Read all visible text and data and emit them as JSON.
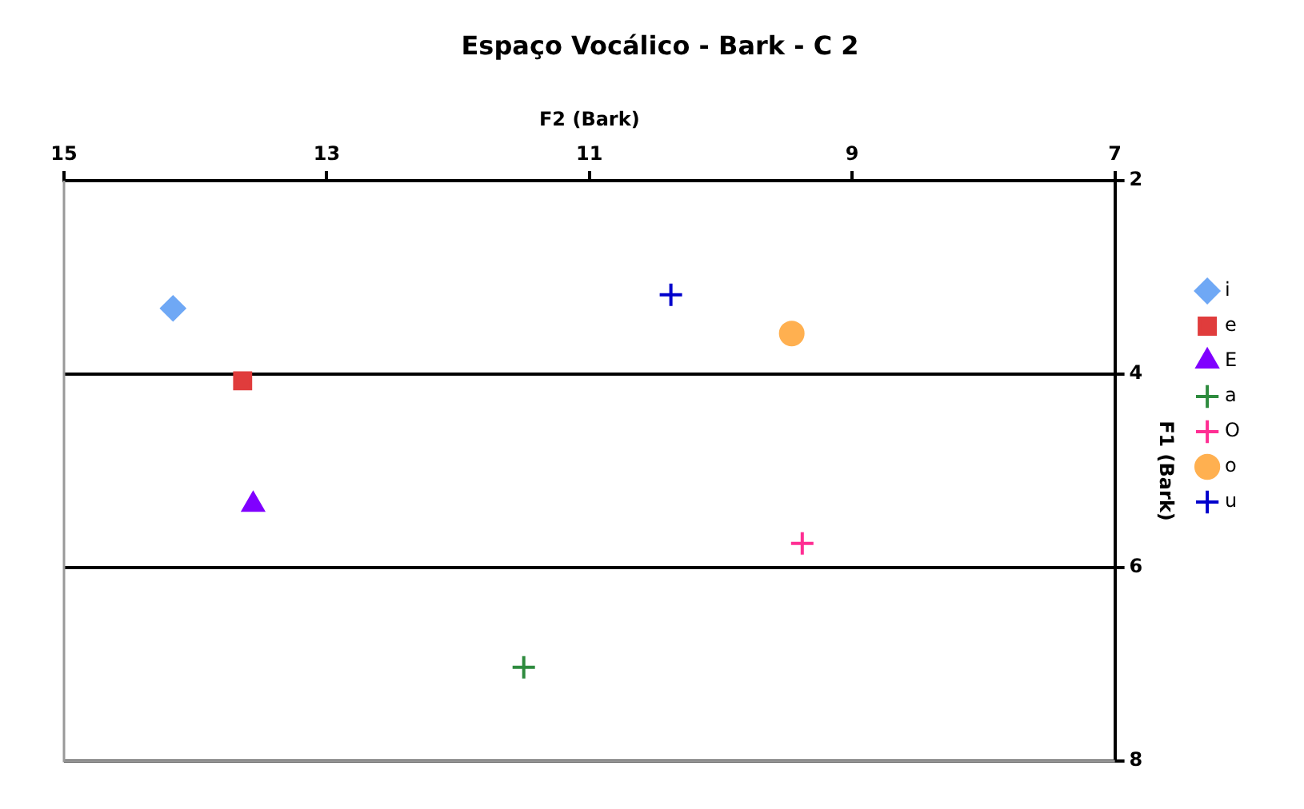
{
  "chart_data": {
    "type": "scatter",
    "title": "Espaço Vocálico - Bark - C 2",
    "xlabel": "F2 (Bark)",
    "ylabel": "F1 (Bark)",
    "xlim": [
      15,
      7
    ],
    "xticks": [
      15,
      13,
      11,
      9,
      7
    ],
    "ylim": [
      8,
      2
    ],
    "yticks": [
      2,
      4,
      6,
      8
    ],
    "grid": "y",
    "legend": "right",
    "series": [
      {
        "name": "i",
        "color": "#6fa8f5",
        "marker": "diamond",
        "x": [
          14.17
        ],
        "values": [
          3.32
        ]
      },
      {
        "name": "e",
        "color": "#e03c3c",
        "marker": "square",
        "x": [
          13.64
        ],
        "values": [
          4.07
        ]
      },
      {
        "name": "E",
        "color": "#8000ff",
        "marker": "triangle",
        "x": [
          13.56
        ],
        "values": [
          5.35
        ]
      },
      {
        "name": "a",
        "color": "#2e8b3e",
        "marker": "cross",
        "x": [
          11.5
        ],
        "values": [
          7.03
        ]
      },
      {
        "name": "O",
        "color": "#ff2e93",
        "marker": "cross",
        "x": [
          9.38
        ],
        "values": [
          5.75
        ]
      },
      {
        "name": "o",
        "color": "#ffb050",
        "marker": "circle",
        "x": [
          9.46
        ],
        "values": [
          3.58
        ]
      },
      {
        "name": "u",
        "color": "#0000cc",
        "marker": "cross",
        "x": [
          10.38
        ],
        "values": [
          3.18
        ]
      }
    ]
  }
}
